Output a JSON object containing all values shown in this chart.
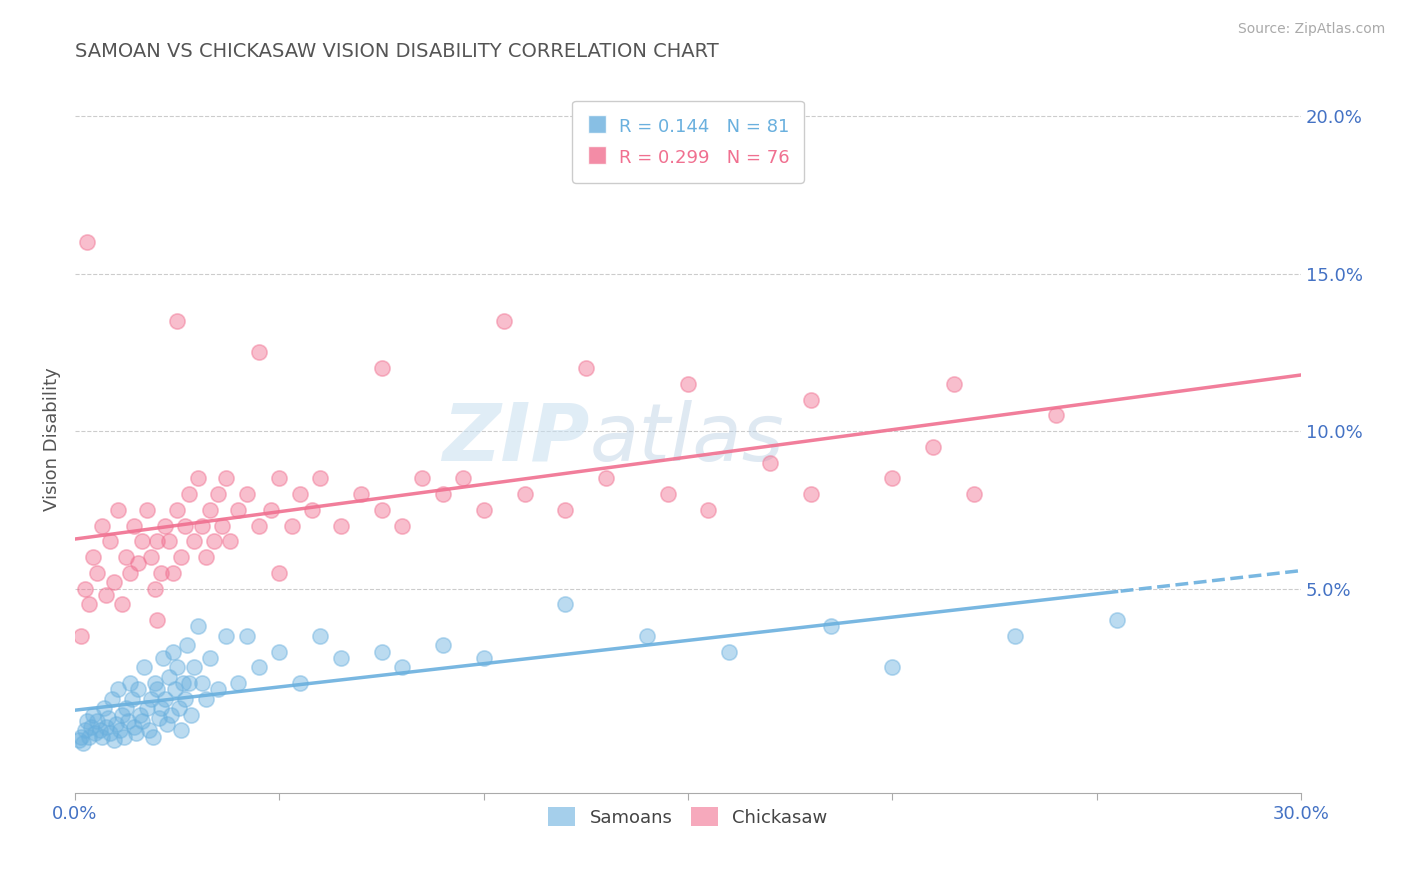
{
  "title": "SAMOAN VS CHICKASAW VISION DISABILITY CORRELATION CHART",
  "source": "Source: ZipAtlas.com",
  "ylabel": "Vision Disability",
  "xlim": [
    0.0,
    30.0
  ],
  "ylim": [
    -1.5,
    21.0
  ],
  "yticks": [
    0.0,
    5.0,
    10.0,
    15.0,
    20.0
  ],
  "ytick_labels": [
    "",
    "5.0%",
    "10.0%",
    "15.0%",
    "20.0%"
  ],
  "samoans_color": "#6ab0de",
  "chickasaw_color": "#f07090",
  "samoans_R": 0.144,
  "samoans_N": 81,
  "chickasaw_R": 0.299,
  "chickasaw_N": 76,
  "samoans_scatter": [
    [
      0.1,
      0.2
    ],
    [
      0.15,
      0.3
    ],
    [
      0.2,
      0.1
    ],
    [
      0.25,
      0.5
    ],
    [
      0.3,
      0.8
    ],
    [
      0.35,
      0.3
    ],
    [
      0.4,
      0.6
    ],
    [
      0.45,
      1.0
    ],
    [
      0.5,
      0.4
    ],
    [
      0.55,
      0.8
    ],
    [
      0.6,
      0.5
    ],
    [
      0.65,
      0.3
    ],
    [
      0.7,
      1.2
    ],
    [
      0.75,
      0.6
    ],
    [
      0.8,
      0.9
    ],
    [
      0.85,
      0.4
    ],
    [
      0.9,
      1.5
    ],
    [
      0.95,
      0.2
    ],
    [
      1.0,
      0.7
    ],
    [
      1.05,
      1.8
    ],
    [
      1.1,
      0.5
    ],
    [
      1.15,
      1.0
    ],
    [
      1.2,
      0.3
    ],
    [
      1.25,
      1.2
    ],
    [
      1.3,
      0.8
    ],
    [
      1.35,
      2.0
    ],
    [
      1.4,
      1.5
    ],
    [
      1.45,
      0.6
    ],
    [
      1.5,
      0.4
    ],
    [
      1.55,
      1.8
    ],
    [
      1.6,
      1.0
    ],
    [
      1.65,
      0.8
    ],
    [
      1.7,
      2.5
    ],
    [
      1.75,
      1.2
    ],
    [
      1.8,
      0.5
    ],
    [
      1.85,
      1.5
    ],
    [
      1.9,
      0.3
    ],
    [
      1.95,
      2.0
    ],
    [
      2.0,
      1.8
    ],
    [
      2.05,
      0.9
    ],
    [
      2.1,
      1.2
    ],
    [
      2.15,
      2.8
    ],
    [
      2.2,
      1.5
    ],
    [
      2.25,
      0.7
    ],
    [
      2.3,
      2.2
    ],
    [
      2.35,
      1.0
    ],
    [
      2.4,
      3.0
    ],
    [
      2.45,
      1.8
    ],
    [
      2.5,
      2.5
    ],
    [
      2.55,
      1.2
    ],
    [
      2.6,
      0.5
    ],
    [
      2.65,
      2.0
    ],
    [
      2.7,
      1.5
    ],
    [
      2.75,
      3.2
    ],
    [
      2.8,
      2.0
    ],
    [
      2.85,
      1.0
    ],
    [
      2.9,
      2.5
    ],
    [
      3.0,
      3.8
    ],
    [
      3.1,
      2.0
    ],
    [
      3.2,
      1.5
    ],
    [
      3.3,
      2.8
    ],
    [
      3.5,
      1.8
    ],
    [
      3.7,
      3.5
    ],
    [
      4.0,
      2.0
    ],
    [
      4.2,
      3.5
    ],
    [
      4.5,
      2.5
    ],
    [
      5.0,
      3.0
    ],
    [
      5.5,
      2.0
    ],
    [
      6.0,
      3.5
    ],
    [
      6.5,
      2.8
    ],
    [
      7.5,
      3.0
    ],
    [
      8.0,
      2.5
    ],
    [
      9.0,
      3.2
    ],
    [
      10.0,
      2.8
    ],
    [
      12.0,
      4.5
    ],
    [
      14.0,
      3.5
    ],
    [
      16.0,
      3.0
    ],
    [
      18.5,
      3.8
    ],
    [
      20.0,
      2.5
    ],
    [
      23.0,
      3.5
    ],
    [
      25.5,
      4.0
    ]
  ],
  "chickasaw_scatter": [
    [
      0.15,
      3.5
    ],
    [
      0.25,
      5.0
    ],
    [
      0.35,
      4.5
    ],
    [
      0.45,
      6.0
    ],
    [
      0.55,
      5.5
    ],
    [
      0.65,
      7.0
    ],
    [
      0.75,
      4.8
    ],
    [
      0.85,
      6.5
    ],
    [
      0.95,
      5.2
    ],
    [
      1.05,
      7.5
    ],
    [
      1.15,
      4.5
    ],
    [
      1.25,
      6.0
    ],
    [
      1.35,
      5.5
    ],
    [
      1.45,
      7.0
    ],
    [
      1.55,
      5.8
    ],
    [
      1.65,
      6.5
    ],
    [
      1.75,
      7.5
    ],
    [
      1.85,
      6.0
    ],
    [
      1.95,
      5.0
    ],
    [
      2.0,
      6.5
    ],
    [
      2.1,
      5.5
    ],
    [
      2.2,
      7.0
    ],
    [
      2.3,
      6.5
    ],
    [
      2.4,
      5.5
    ],
    [
      2.5,
      7.5
    ],
    [
      2.6,
      6.0
    ],
    [
      2.7,
      7.0
    ],
    [
      2.8,
      8.0
    ],
    [
      2.9,
      6.5
    ],
    [
      3.0,
      8.5
    ],
    [
      3.1,
      7.0
    ],
    [
      3.2,
      6.0
    ],
    [
      3.3,
      7.5
    ],
    [
      3.4,
      6.5
    ],
    [
      3.5,
      8.0
    ],
    [
      3.6,
      7.0
    ],
    [
      3.7,
      8.5
    ],
    [
      3.8,
      6.5
    ],
    [
      4.0,
      7.5
    ],
    [
      4.2,
      8.0
    ],
    [
      4.5,
      7.0
    ],
    [
      4.8,
      7.5
    ],
    [
      5.0,
      8.5
    ],
    [
      5.3,
      7.0
    ],
    [
      5.5,
      8.0
    ],
    [
      5.8,
      7.5
    ],
    [
      6.0,
      8.5
    ],
    [
      6.5,
      7.0
    ],
    [
      7.0,
      8.0
    ],
    [
      7.5,
      7.5
    ],
    [
      8.0,
      7.0
    ],
    [
      8.5,
      8.5
    ],
    [
      9.0,
      8.0
    ],
    [
      9.5,
      8.5
    ],
    [
      10.0,
      7.5
    ],
    [
      11.0,
      8.0
    ],
    [
      12.0,
      7.5
    ],
    [
      13.0,
      8.5
    ],
    [
      14.5,
      8.0
    ],
    [
      15.5,
      7.5
    ],
    [
      17.0,
      9.0
    ],
    [
      18.0,
      8.0
    ],
    [
      20.0,
      8.5
    ],
    [
      21.0,
      9.5
    ],
    [
      22.0,
      8.0
    ],
    [
      0.3,
      16.0
    ],
    [
      2.5,
      13.5
    ],
    [
      4.5,
      12.5
    ],
    [
      7.5,
      12.0
    ],
    [
      10.5,
      13.5
    ],
    [
      12.5,
      12.0
    ],
    [
      15.0,
      11.5
    ],
    [
      18.0,
      11.0
    ],
    [
      21.5,
      11.5
    ],
    [
      24.0,
      10.5
    ],
    [
      2.0,
      4.0
    ],
    [
      5.0,
      5.5
    ]
  ],
  "background_color": "#ffffff",
  "grid_color": "#cccccc",
  "title_color": "#555555",
  "axis_label_color": "#4472c4",
  "watermark_zip": "ZIP",
  "watermark_atlas": "atlas"
}
